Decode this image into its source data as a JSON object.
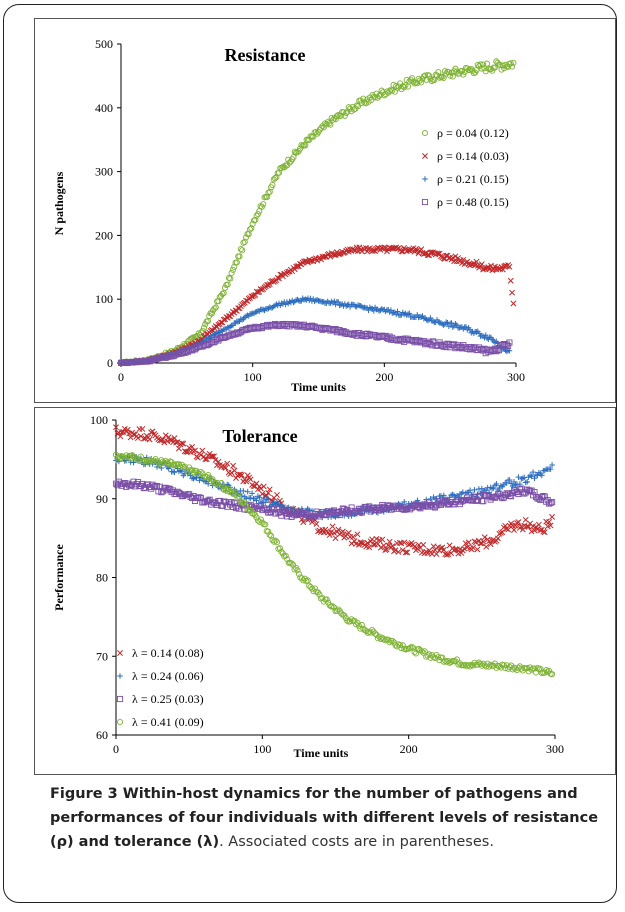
{
  "chart_data": [
    {
      "type": "scatter",
      "title": "Resistance",
      "xlabel": "Time units",
      "ylabel": "N pathogens",
      "xlim": [
        0,
        300
      ],
      "ylim": [
        0,
        500
      ],
      "xticks": [
        "0",
        "100",
        "200",
        "300"
      ],
      "yticks": [
        "0",
        "100",
        "200",
        "300",
        "400",
        "500"
      ],
      "legend_position": "center-right",
      "series": [
        {
          "name": "ρ  = 0.04 (0.12)",
          "marker": "circle",
          "color": "#7db233",
          "points": [
            [
              0,
              0
            ],
            [
              20,
              4
            ],
            [
              40,
              18
            ],
            [
              60,
              45
            ],
            [
              80,
              120
            ],
            [
              100,
              220
            ],
            [
              120,
              300
            ],
            [
              140,
              345
            ],
            [
              160,
              380
            ],
            [
              180,
              405
            ],
            [
              200,
              425
            ],
            [
              220,
              440
            ],
            [
              240,
              450
            ],
            [
              260,
              458
            ],
            [
              280,
              465
            ],
            [
              298,
              470
            ]
          ]
        },
        {
          "name": "ρ  = 0.14 (0.03)",
          "marker": "x",
          "color": "#c0282a",
          "points": [
            [
              0,
              0
            ],
            [
              20,
              4
            ],
            [
              40,
              15
            ],
            [
              60,
              35
            ],
            [
              80,
              70
            ],
            [
              100,
              105
            ],
            [
              120,
              135
            ],
            [
              140,
              158
            ],
            [
              160,
              170
            ],
            [
              180,
              178
            ],
            [
              200,
              178
            ],
            [
              220,
              178
            ],
            [
              240,
              170
            ],
            [
              260,
              160
            ],
            [
              280,
              148
            ],
            [
              295,
              150
            ],
            [
              298,
              95
            ]
          ]
        },
        {
          "name": "ρ  = 0.21 (0.15)",
          "marker": "plus",
          "color": "#2c6dc0",
          "points": [
            [
              0,
              0
            ],
            [
              20,
              4
            ],
            [
              40,
              14
            ],
            [
              60,
              30
            ],
            [
              80,
              55
            ],
            [
              100,
              78
            ],
            [
              120,
              92
            ],
            [
              140,
              100
            ],
            [
              160,
              95
            ],
            [
              180,
              88
            ],
            [
              200,
              82
            ],
            [
              220,
              75
            ],
            [
              240,
              65
            ],
            [
              260,
              55
            ],
            [
              280,
              40
            ],
            [
              295,
              18
            ]
          ]
        },
        {
          "name": "ρ  = 0.48 (0.15)",
          "marker": "square",
          "color": "#7a4fa8",
          "points": [
            [
              0,
              0
            ],
            [
              20,
              3
            ],
            [
              40,
              12
            ],
            [
              60,
              25
            ],
            [
              80,
              42
            ],
            [
              100,
              55
            ],
            [
              120,
              60
            ],
            [
              140,
              58
            ],
            [
              160,
              52
            ],
            [
              180,
              45
            ],
            [
              200,
              40
            ],
            [
              220,
              35
            ],
            [
              240,
              30
            ],
            [
              260,
              25
            ],
            [
              280,
              18
            ],
            [
              295,
              30
            ]
          ]
        }
      ]
    },
    {
      "type": "scatter",
      "title": "Tolerance",
      "xlabel": "Time units",
      "ylabel": "Performance",
      "xlim": [
        0,
        300
      ],
      "ylim": [
        60,
        100
      ],
      "xticks": [
        "0",
        "100",
        "200",
        "300"
      ],
      "yticks": [
        "60",
        "70",
        "80",
        "90",
        "100"
      ],
      "legend_position": "bottom-left",
      "series": [
        {
          "name": "λ  = 0.14 (0.08)",
          "marker": "x",
          "color": "#c0282a",
          "points": [
            [
              0,
              98.5
            ],
            [
              20,
              98.3
            ],
            [
              40,
              97.2
            ],
            [
              60,
              95.5
            ],
            [
              80,
              93.5
            ],
            [
              100,
              91.2
            ],
            [
              120,
              88.5
            ],
            [
              140,
              86.3
            ],
            [
              160,
              85.0
            ],
            [
              180,
              84.2
            ],
            [
              200,
              83.8
            ],
            [
              220,
              83.5
            ],
            [
              240,
              83.7
            ],
            [
              260,
              85.0
            ],
            [
              270,
              86.5
            ],
            [
              280,
              86.8
            ],
            [
              290,
              86.0
            ],
            [
              298,
              87.0
            ]
          ]
        },
        {
          "name": "λ  = 0.24 (0.06)",
          "marker": "plus",
          "color": "#2c6dc0",
          "points": [
            [
              0,
              95.2
            ],
            [
              20,
              94.8
            ],
            [
              40,
              93.8
            ],
            [
              60,
              92.5
            ],
            [
              80,
              91.0
            ],
            [
              100,
              89.8
            ],
            [
              120,
              88.5
            ],
            [
              140,
              88.0
            ],
            [
              160,
              88.3
            ],
            [
              180,
              88.7
            ],
            [
              200,
              89.2
            ],
            [
              220,
              89.8
            ],
            [
              240,
              90.5
            ],
            [
              260,
              91.5
            ],
            [
              280,
              92.5
            ],
            [
              298,
              94.0
            ]
          ]
        },
        {
          "name": "λ  = 0.25 (0.03)",
          "marker": "square",
          "color": "#7a4fa8",
          "points": [
            [
              0,
              92.0
            ],
            [
              20,
              91.7
            ],
            [
              40,
              90.8
            ],
            [
              60,
              89.8
            ],
            [
              80,
              89.2
            ],
            [
              100,
              88.7
            ],
            [
              120,
              88.0
            ],
            [
              140,
              88.0
            ],
            [
              160,
              88.5
            ],
            [
              180,
              88.8
            ],
            [
              200,
              89.0
            ],
            [
              220,
              89.3
            ],
            [
              240,
              89.8
            ],
            [
              260,
              90.3
            ],
            [
              280,
              91.0
            ],
            [
              298,
              89.5
            ]
          ]
        },
        {
          "name": "λ  = 0.41 (0.09)",
          "marker": "circle",
          "color": "#7db233",
          "points": [
            [
              0,
              95.5
            ],
            [
              20,
              95.0
            ],
            [
              40,
              94.3
            ],
            [
              60,
              93.0
            ],
            [
              80,
              90.8
            ],
            [
              100,
              87.0
            ],
            [
              120,
              81.5
            ],
            [
              140,
              77.5
            ],
            [
              160,
              74.5
            ],
            [
              180,
              72.5
            ],
            [
              200,
              71.0
            ],
            [
              220,
              69.8
            ],
            [
              240,
              69.0
            ],
            [
              260,
              68.8
            ],
            [
              280,
              68.5
            ],
            [
              298,
              67.8
            ]
          ]
        }
      ]
    }
  ],
  "caption": {
    "label": "Figure 3",
    "bold_text": " Within-host dynamics for the number of pathogens and performances of four individuals with different levels of resistance (ρ) and tolerance (λ)",
    "rest": ". Associated costs are in parentheses."
  }
}
